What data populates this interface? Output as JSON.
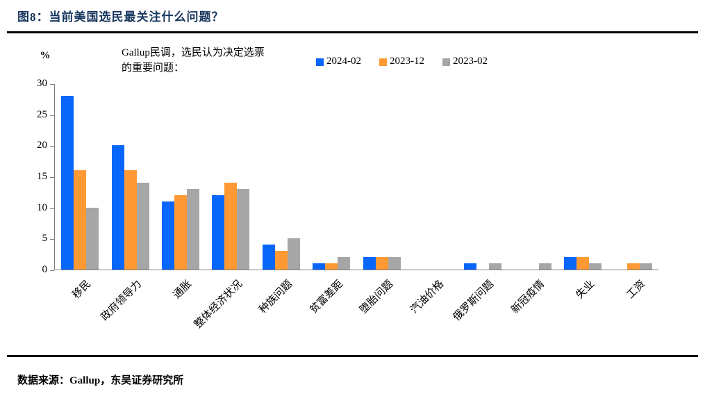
{
  "header": {
    "title": "图8：当前美国选民最关注什么问题？"
  },
  "subtitle": {
    "line1": "Gallup民调，选民认为决定选票",
    "line2": "的重要问题："
  },
  "footer": {
    "source": "数据来源：Gallup，东吴证券研究所"
  },
  "colors": {
    "axis": "#808080",
    "title_text": "#17365D",
    "rule": "#000000"
  },
  "chart_data": {
    "type": "bar",
    "unit_label": "%",
    "title": "Gallup民调，选民认为决定选票的重要问题",
    "categories": [
      "移民",
      "政府领导力",
      "通胀",
      "整体经济状况",
      "种族问题",
      "贫富差距",
      "堕胎问题",
      "汽油价格",
      "俄罗斯问题",
      "新冠疫情",
      "失业",
      "工资"
    ],
    "series": [
      {
        "name": "2024-02",
        "color": "#0966FA",
        "values": [
          28,
          20,
          11,
          12,
          4,
          1,
          2,
          0,
          1,
          0,
          2,
          0
        ]
      },
      {
        "name": "2023-12",
        "color": "#FF9933",
        "values": [
          16,
          16,
          12,
          14,
          3,
          1,
          2,
          0,
          0,
          0,
          2,
          1
        ]
      },
      {
        "name": "2023-02",
        "color": "#A6A6A6",
        "values": [
          10,
          14,
          13,
          13,
          5,
          2,
          2,
          0,
          1,
          1,
          1,
          1
        ]
      }
    ],
    "ylim": [
      0,
      30
    ],
    "yticks": [
      0,
      5,
      10,
      15,
      20,
      25,
      30
    ],
    "grid": false,
    "legend_position": "top-center",
    "xlabel": "",
    "ylabel": "%"
  }
}
